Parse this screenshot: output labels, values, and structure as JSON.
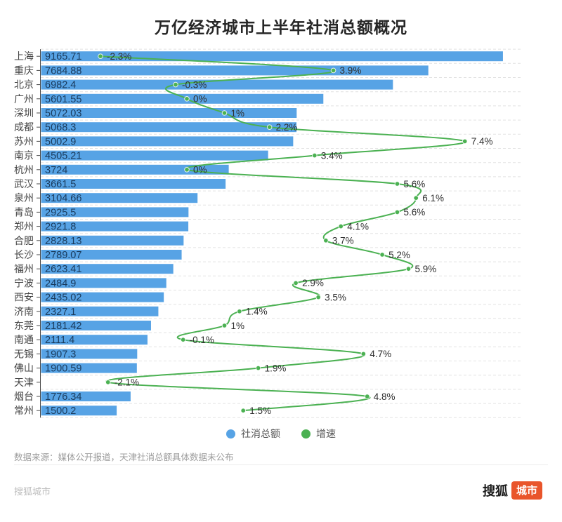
{
  "title": "万亿经济城市上半年社消总额概况",
  "legend": {
    "items": [
      {
        "label": "社消总额",
        "color": "#57A3E5"
      },
      {
        "label": "增速",
        "color": "#4BB152"
      }
    ]
  },
  "footer": {
    "source_note": "数据来源：媒体公开报道，天津社消总额具体数据未公布",
    "watermark": "搜狐城市",
    "logo": {
      "text_black": "搜狐",
      "text_badge": "城市",
      "badge_color": "#E9552B"
    }
  },
  "chart_data": {
    "type": "bar",
    "orientation": "horizontal",
    "title": "万亿经济城市上半年社消总额概况",
    "grid": "dashed horizontal row lines",
    "legend_position": "bottom-center",
    "categories": [
      "上海",
      "重庆",
      "北京",
      "广州",
      "深圳",
      "成都",
      "苏州",
      "南京",
      "杭州",
      "武汉",
      "泉州",
      "青岛",
      "郑州",
      "合肥",
      "长沙",
      "福州",
      "宁波",
      "西安",
      "济南",
      "东莞",
      "南通",
      "无锡",
      "佛山",
      "天津",
      "烟台",
      "常州"
    ],
    "series": [
      {
        "name": "社消总额",
        "type": "bar",
        "color": "#57A3E5",
        "label_color": "#1A3B5D",
        "values": [
          9165.71,
          7684.88,
          6982.4,
          5601.55,
          5072.03,
          5068.3,
          5002.9,
          4505.21,
          3724,
          3661.5,
          3104.66,
          2925.5,
          2921.8,
          2828.13,
          2789.07,
          2623.41,
          2484.9,
          2435.02,
          2327.1,
          2181.42,
          2111.4,
          1907.3,
          1900.59,
          null,
          1776.34,
          1500.2
        ],
        "labels": [
          "9165.71",
          "7684.88",
          "6982.4",
          "5601.55",
          "5072.03",
          "5068.3",
          "5002.9",
          "4505.21",
          "3724",
          "3661.5",
          "3104.66",
          "2925.5",
          "2921.8",
          "2828.13",
          "2789.07",
          "2623.41",
          "2484.9",
          "2435.02",
          "2327.1",
          "2181.42",
          "2111.4",
          "1907.3",
          "1900.59",
          "",
          "1776.34",
          "1500.2"
        ]
      },
      {
        "name": "增速",
        "type": "line",
        "color": "#4BB152",
        "label_color": "#2F2F2F",
        "values": [
          -2.3,
          3.9,
          -0.3,
          0,
          1,
          2.2,
          7.4,
          3.4,
          0,
          5.6,
          6.1,
          5.6,
          4.1,
          3.7,
          5.2,
          5.9,
          2.9,
          3.5,
          1.4,
          1,
          -0.1,
          4.7,
          1.9,
          -2.1,
          4.8,
          1.5
        ],
        "labels": [
          "-2.3%",
          "3.9%",
          "-0.3%",
          "0%",
          "1%",
          "2.2%",
          "7.4%",
          "3.4%",
          "0%",
          "5.6%",
          "6.1%",
          "5.6%",
          "4.1%",
          "3.7%",
          "5.2%",
          "5.9%",
          "2.9%",
          "3.5%",
          "1.4%",
          "1%",
          "-0.1%",
          "4.7%",
          "1.9%",
          "-2.1%",
          "4.8%",
          "1.5%"
        ]
      }
    ],
    "value_axis": {
      "min": 0,
      "max": 9550
    },
    "growth_axis": {
      "min": -3.89,
      "max": 8.92
    }
  }
}
